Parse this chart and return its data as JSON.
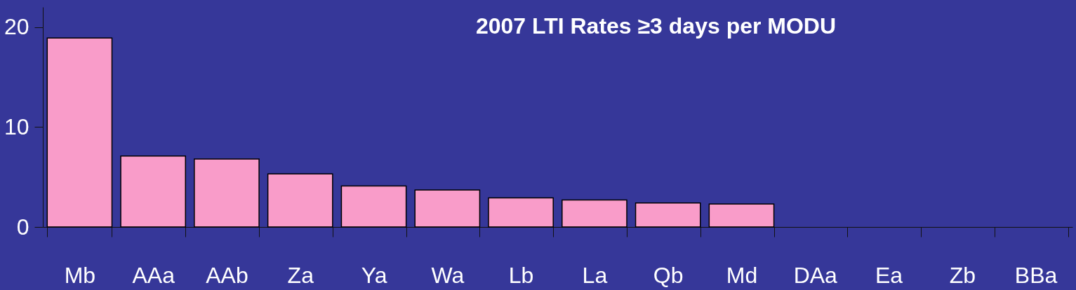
{
  "chart_data": {
    "type": "bar",
    "title": "2007 LTI Rates ≥3 days per MODU",
    "categories": [
      "Mb",
      "AAa",
      "AAb",
      "Za",
      "Ya",
      "Wa",
      "Lb",
      "La",
      "Qb",
      "Md",
      "DAa",
      "Ea",
      "Zb",
      "BBa"
    ],
    "values": [
      18.9,
      7.1,
      6.8,
      5.3,
      4.1,
      3.7,
      2.9,
      2.7,
      2.4,
      2.3,
      0,
      0,
      0,
      0
    ],
    "color": "#f99cc9",
    "ylim": [
      0,
      22
    ],
    "yticks": [
      0,
      10,
      20
    ],
    "grid": false
  }
}
